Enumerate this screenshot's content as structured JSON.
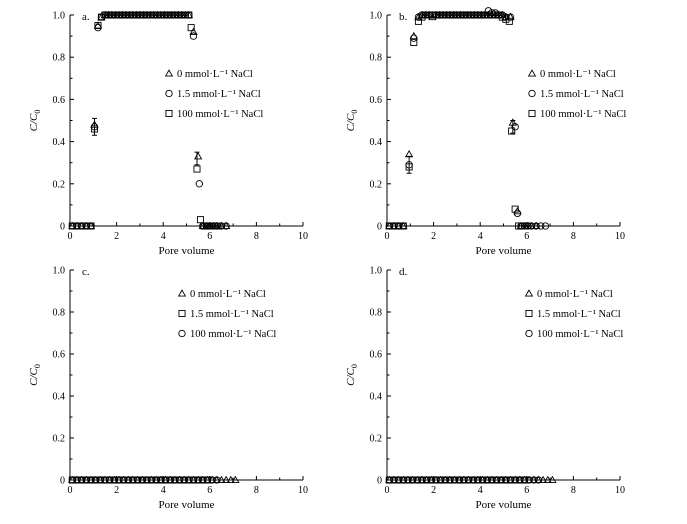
{
  "chart_data": [
    {
      "type": "scatter",
      "panel_label": "a.",
      "xlabel": "Pore volume",
      "ylabel": "C/C",
      "ylabel_sub": "0",
      "xlim": [
        0,
        10
      ],
      "ylim": [
        0,
        1.0
      ],
      "xticks": [
        "0",
        "2",
        "4",
        "6",
        "8",
        "10"
      ],
      "yticks": [
        "0",
        "0.2",
        "0.4",
        "0.6",
        "0.8",
        "1.0"
      ],
      "series": [
        {
          "name": "0 mmol·L⁻¹ NaCl",
          "marker": "triangle",
          "x": [
            0.1,
            0.3,
            0.5,
            0.7,
            0.9,
            1.05,
            1.2,
            1.35,
            1.5,
            1.65,
            1.8,
            1.95,
            2.1,
            2.25,
            2.4,
            2.55,
            2.7,
            2.85,
            3.0,
            3.15,
            3.3,
            3.45,
            3.6,
            3.75,
            3.9,
            4.05,
            4.2,
            4.35,
            4.5,
            4.65,
            4.8,
            4.95,
            5.1,
            5.3,
            5.5,
            5.7,
            5.85,
            6.0,
            6.15,
            6.3,
            6.5,
            6.7
          ],
          "y": [
            0,
            0,
            0,
            0,
            0,
            0.48,
            0.95,
            0.99,
            1.0,
            1.0,
            1.0,
            1.0,
            1.0,
            1.0,
            1.0,
            1.0,
            1.0,
            1.0,
            1.0,
            1.0,
            1.0,
            1.0,
            1.0,
            1.0,
            1.0,
            1.0,
            1.0,
            1.0,
            1.0,
            1.0,
            1.0,
            1.0,
            1.0,
            0.92,
            0.33,
            0.0,
            0,
            0,
            0,
            0,
            0,
            0
          ]
        },
        {
          "name": "1.5 mmol·L⁻¹ NaCl",
          "marker": "circle",
          "x": [
            0.1,
            0.3,
            0.5,
            0.7,
            0.9,
            1.05,
            1.2,
            1.35,
            1.5,
            1.65,
            1.8,
            1.95,
            2.1,
            2.25,
            2.4,
            2.55,
            2.7,
            2.85,
            3.0,
            3.15,
            3.3,
            3.45,
            3.6,
            3.75,
            3.9,
            4.05,
            4.2,
            4.35,
            4.5,
            4.65,
            4.8,
            4.95,
            5.1,
            5.3,
            5.55,
            5.7,
            5.85,
            6.0,
            6.15,
            6.3,
            6.5,
            6.7
          ],
          "y": [
            0,
            0,
            0,
            0,
            0,
            0.47,
            0.94,
            0.99,
            1.0,
            1.0,
            1.0,
            1.0,
            1.0,
            1.0,
            1.0,
            1.0,
            1.0,
            1.0,
            1.0,
            1.0,
            1.0,
            1.0,
            1.0,
            1.0,
            1.0,
            1.0,
            1.0,
            1.0,
            1.0,
            1.0,
            1.0,
            1.0,
            1.0,
            0.9,
            0.2,
            0.0,
            0,
            0,
            0,
            0,
            0,
            0
          ]
        },
        {
          "name": "100 mmol·L⁻¹ NaCl",
          "marker": "square",
          "x": [
            0.1,
            0.3,
            0.5,
            0.7,
            0.9,
            1.05,
            1.2,
            1.35,
            1.5,
            1.65,
            1.8,
            1.95,
            2.1,
            2.25,
            2.4,
            2.55,
            2.7,
            2.85,
            3.0,
            3.15,
            3.3,
            3.45,
            3.6,
            3.75,
            3.9,
            4.05,
            4.2,
            4.35,
            4.5,
            4.65,
            4.8,
            4.95,
            5.1,
            5.2,
            5.45,
            5.6,
            5.75,
            5.9,
            6.05,
            6.2,
            6.35
          ],
          "y": [
            0,
            0,
            0,
            0,
            0,
            0.46,
            0.95,
            0.99,
            1.0,
            1.0,
            1.0,
            1.0,
            1.0,
            1.0,
            1.0,
            1.0,
            1.0,
            1.0,
            1.0,
            1.0,
            1.0,
            1.0,
            1.0,
            1.0,
            1.0,
            1.0,
            1.0,
            1.0,
            1.0,
            1.0,
            1.0,
            1.0,
            1.0,
            0.94,
            0.27,
            0.03,
            0,
            0,
            0,
            0,
            0
          ]
        }
      ],
      "error_bars": [
        {
          "x": 1.05,
          "y": 0.47,
          "err": 0.04
        },
        {
          "x": 5.45,
          "y": 0.32,
          "err": 0.03
        }
      ]
    },
    {
      "type": "scatter",
      "panel_label": "b.",
      "xlabel": "Pore volume",
      "ylabel": "C/C",
      "ylabel_sub": "0",
      "xlim": [
        0,
        10
      ],
      "ylim": [
        0,
        1.0
      ],
      "xticks": [
        "0",
        "2",
        "4",
        "6",
        "8",
        "10"
      ],
      "yticks": [
        "0",
        "0.2",
        "0.4",
        "0.6",
        "0.8",
        "1.0"
      ],
      "series": [
        {
          "name": "0 mmol·L⁻¹ NaCl",
          "marker": "triangle",
          "x": [
            0.1,
            0.3,
            0.5,
            0.7,
            0.95,
            1.15,
            1.35,
            1.5,
            1.65,
            1.8,
            1.95,
            2.1,
            2.25,
            2.4,
            2.55,
            2.7,
            2.85,
            3.0,
            3.15,
            3.3,
            3.45,
            3.6,
            3.75,
            3.9,
            4.05,
            4.2,
            4.35,
            4.5,
            4.65,
            4.8,
            4.95,
            5.1,
            5.3,
            5.4,
            5.6,
            5.75,
            5.9,
            6.05,
            6.2,
            6.4
          ],
          "y": [
            0,
            0,
            0,
            0,
            0.34,
            0.9,
            0.99,
            1.0,
            1.0,
            1.0,
            0.99,
            1.0,
            1.0,
            1.0,
            1.0,
            1.0,
            1.0,
            1.0,
            1.0,
            1.0,
            1.0,
            1.0,
            1.0,
            1.0,
            1.0,
            1.0,
            1.0,
            1.0,
            1.0,
            1.0,
            1.0,
            0.99,
            0.99,
            0.49,
            0.07,
            0,
            0,
            0,
            0,
            0
          ]
        },
        {
          "name": "1.5 mmol·L⁻¹ NaCl",
          "marker": "circle",
          "x": [
            0.1,
            0.3,
            0.5,
            0.7,
            0.95,
            1.15,
            1.35,
            1.5,
            1.65,
            1.8,
            1.95,
            2.1,
            2.25,
            2.4,
            2.55,
            2.7,
            2.85,
            3.0,
            3.15,
            3.3,
            3.45,
            3.6,
            3.75,
            3.9,
            4.05,
            4.2,
            4.35,
            4.5,
            4.65,
            4.8,
            4.95,
            5.1,
            5.3,
            5.5,
            5.6,
            5.75,
            5.9,
            6.05,
            6.2,
            6.4,
            6.6,
            6.8
          ],
          "y": [
            0,
            0,
            0,
            0,
            0.29,
            0.89,
            0.99,
            1.0,
            1.0,
            1.0,
            1.0,
            1.0,
            1.0,
            1.0,
            1.0,
            1.0,
            1.0,
            1.0,
            1.0,
            1.0,
            1.0,
            1.0,
            1.0,
            1.0,
            1.0,
            1.0,
            1.02,
            1.01,
            1.01,
            1.0,
            1.0,
            0.99,
            0.99,
            0.47,
            0.06,
            0,
            0,
            0,
            0,
            0,
            0,
            0
          ]
        },
        {
          "name": "100 mmol·L⁻¹ NaCl",
          "marker": "square",
          "x": [
            0.1,
            0.3,
            0.5,
            0.7,
            0.95,
            1.15,
            1.35,
            1.5,
            1.65,
            1.8,
            1.95,
            2.1,
            2.25,
            2.4,
            2.55,
            2.7,
            2.85,
            3.0,
            3.15,
            3.3,
            3.45,
            3.6,
            3.75,
            3.9,
            4.05,
            4.2,
            4.35,
            4.5,
            4.65,
            4.8,
            4.95,
            5.1,
            5.25,
            5.35,
            5.5,
            5.65,
            5.8
          ],
          "y": [
            0,
            0,
            0,
            0,
            0.28,
            0.87,
            0.97,
            0.99,
            1.0,
            1.0,
            1.0,
            1.0,
            1.0,
            1.0,
            1.0,
            1.0,
            1.0,
            1.0,
            1.0,
            1.0,
            1.0,
            1.0,
            1.0,
            1.0,
            1.0,
            1.0,
            1.0,
            1.0,
            1.0,
            1.0,
            0.99,
            0.98,
            0.97,
            0.45,
            0.08,
            0,
            0
          ]
        }
      ],
      "error_bars": [
        {
          "x": 0.95,
          "y": 0.29,
          "err": 0.04
        },
        {
          "x": 5.4,
          "y": 0.47,
          "err": 0.03
        }
      ]
    },
    {
      "type": "scatter",
      "panel_label": "c.",
      "xlabel": "Pore volume",
      "ylabel": "C/C",
      "ylabel_sub": "0",
      "xlim": [
        0,
        10
      ],
      "ylim": [
        0,
        1.0
      ],
      "xticks": [
        "0",
        "2",
        "4",
        "6",
        "8",
        "10"
      ],
      "yticks": [
        "0",
        "0.2",
        "0.4",
        "0.6",
        "0.8",
        "1.0"
      ],
      "series": [
        {
          "name": "0 mmol·L⁻¹ NaCl",
          "marker": "triangle",
          "x": [
            0.1,
            0.3,
            0.5,
            0.7,
            0.9,
            1.1,
            1.3,
            1.5,
            1.7,
            1.9,
            2.1,
            2.3,
            2.5,
            2.7,
            2.9,
            3.1,
            3.3,
            3.5,
            3.7,
            3.9,
            4.1,
            4.3,
            4.5,
            4.7,
            4.9,
            5.1,
            5.3,
            5.5,
            5.7,
            5.9,
            6.1,
            6.3,
            6.5,
            6.7,
            6.9,
            7.1
          ],
          "y": [
            0,
            0,
            0,
            0,
            0,
            0,
            0,
            0,
            0,
            0,
            0,
            0,
            0,
            0,
            0,
            0,
            0,
            0,
            0,
            0,
            0,
            0,
            0,
            0,
            0,
            0,
            0,
            0,
            0,
            0,
            0,
            0,
            0,
            0,
            0,
            0
          ]
        },
        {
          "name": "1.5 mmol·L⁻¹ NaCl",
          "marker": "square",
          "x": [
            0.1,
            0.3,
            0.5,
            0.7,
            0.9,
            1.1,
            1.3,
            1.5,
            1.7,
            1.9,
            2.1,
            2.3,
            2.5,
            2.7,
            2.9,
            3.1,
            3.3,
            3.5,
            3.7,
            3.9,
            4.1,
            4.3,
            4.5,
            4.7,
            4.9,
            5.1,
            5.3,
            5.5,
            5.7,
            5.9
          ],
          "y": [
            0,
            0,
            0,
            0,
            0,
            0,
            0,
            0,
            0,
            0,
            0,
            0,
            0,
            0,
            0,
            0,
            0,
            0,
            0,
            0,
            0,
            0,
            0,
            0,
            0,
            0,
            0,
            0,
            0,
            0
          ]
        },
        {
          "name": "100 mmol·L⁻¹ NaCl",
          "marker": "circle",
          "x": [
            0.1,
            0.3,
            0.5,
            0.7,
            0.9,
            1.1,
            1.3,
            1.5,
            1.7,
            1.9,
            2.1,
            2.3,
            2.5,
            2.7,
            2.9,
            3.1,
            3.3,
            3.5,
            3.7,
            3.9,
            4.1,
            4.3,
            4.5,
            4.7,
            4.9,
            5.1,
            5.3,
            5.5,
            5.7,
            5.9,
            6.1,
            6.3
          ],
          "y": [
            0,
            0,
            0,
            0,
            0,
            0,
            0,
            0,
            0,
            0,
            0,
            0,
            0,
            0,
            0,
            0,
            0,
            0,
            0,
            0,
            0,
            0,
            0,
            0,
            0,
            0,
            0,
            0,
            0,
            0,
            0,
            0
          ]
        }
      ],
      "error_bars": []
    },
    {
      "type": "scatter",
      "panel_label": "d.",
      "xlabel": "Pore volume",
      "ylabel": "C/C",
      "ylabel_sub": "0",
      "xlim": [
        0,
        10
      ],
      "ylim": [
        0,
        1.0
      ],
      "xticks": [
        "0",
        "2",
        "4",
        "6",
        "8",
        "10"
      ],
      "yticks": [
        "0",
        "0.2",
        "0.4",
        "0.6",
        "0.8",
        "1.0"
      ],
      "series": [
        {
          "name": "0 mmol·L⁻¹ NaCl",
          "marker": "triangle",
          "x": [
            0.1,
            0.3,
            0.5,
            0.7,
            0.9,
            1.1,
            1.3,
            1.5,
            1.7,
            1.9,
            2.1,
            2.3,
            2.5,
            2.7,
            2.9,
            3.1,
            3.3,
            3.5,
            3.7,
            3.9,
            4.1,
            4.3,
            4.5,
            4.7,
            4.9,
            5.1,
            5.3,
            5.5,
            5.7,
            5.9,
            6.1,
            6.3,
            6.5,
            6.7,
            6.9,
            7.1
          ],
          "y": [
            0,
            0,
            0,
            0,
            0,
            0,
            0,
            0,
            0,
            0,
            0,
            0,
            0,
            0,
            0,
            0,
            0,
            0,
            0,
            0,
            0,
            0,
            0,
            0,
            0,
            0,
            0,
            0,
            0,
            0,
            0,
            0,
            0,
            0,
            0,
            0
          ]
        },
        {
          "name": "1.5 mmol·L⁻¹ NaCl",
          "marker": "square",
          "x": [
            0.1,
            0.3,
            0.5,
            0.7,
            0.9,
            1.1,
            1.3,
            1.5,
            1.7,
            1.9,
            2.1,
            2.3,
            2.5,
            2.7,
            2.9,
            3.1,
            3.3,
            3.5,
            3.7,
            3.9,
            4.1,
            4.3,
            4.5,
            4.7,
            4.9,
            5.1,
            5.3,
            5.5,
            5.7,
            5.9
          ],
          "y": [
            0,
            0,
            0,
            0,
            0,
            0,
            0,
            0,
            0,
            0,
            0,
            0,
            0,
            0,
            0,
            0,
            0,
            0,
            0,
            0,
            0,
            0,
            0,
            0,
            0,
            0,
            0,
            0,
            0,
            0
          ]
        },
        {
          "name": "100 mmol·L⁻¹ NaCl",
          "marker": "circle",
          "x": [
            0.1,
            0.3,
            0.5,
            0.7,
            0.9,
            1.1,
            1.3,
            1.5,
            1.7,
            1.9,
            2.1,
            2.3,
            2.5,
            2.7,
            2.9,
            3.1,
            3.3,
            3.5,
            3.7,
            3.9,
            4.1,
            4.3,
            4.5,
            4.7,
            4.9,
            5.1,
            5.3,
            5.5,
            5.7,
            5.9,
            6.1,
            6.3,
            6.5
          ],
          "y": [
            0,
            0,
            0,
            0,
            0,
            0,
            0,
            0,
            0,
            0,
            0,
            0,
            0,
            0,
            0,
            0,
            0,
            0,
            0,
            0,
            0,
            0,
            0,
            0,
            0,
            0,
            0,
            0,
            0,
            0,
            0,
            0,
            0
          ]
        }
      ],
      "error_bars": []
    }
  ]
}
